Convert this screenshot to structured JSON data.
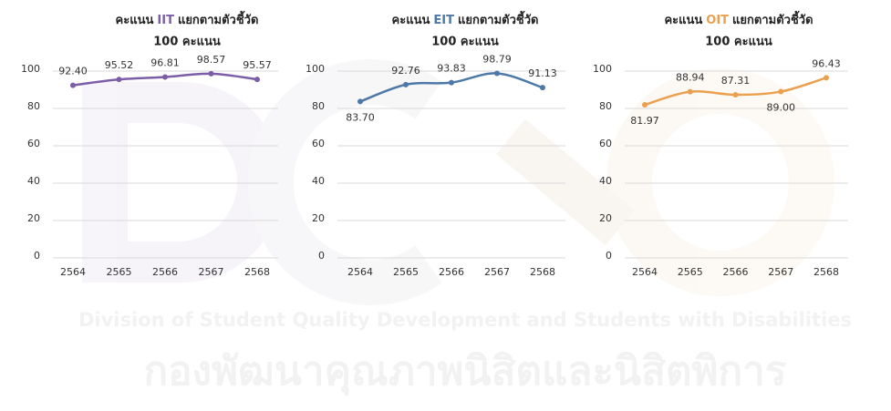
{
  "chart_data": [
    {
      "type": "line",
      "title": [
        "คะแนน",
        "IIT",
        "แยกตามตัวชี้วัด"
      ],
      "subtitle": "100 คะแนน",
      "categories": [
        "2564",
        "2565",
        "2566",
        "2567",
        "2568"
      ],
      "series": [
        {
          "name": "IIT",
          "color": "#7b5ea7",
          "values": [
            92.4,
            95.52,
            96.81,
            98.57,
            95.57
          ],
          "value_labels": [
            "92.40",
            "95.52",
            "96.81",
            "98.57",
            "95.57"
          ]
        }
      ],
      "ylim": [
        0,
        100
      ],
      "yticks": [
        0,
        20,
        40,
        60,
        80,
        100
      ],
      "grid": true
    },
    {
      "type": "line",
      "title": [
        "คะแนน",
        "EIT",
        "แยกตามตัวชี้วัด"
      ],
      "subtitle": "100 คะแนน",
      "categories": [
        "2564",
        "2565",
        "2566",
        "2567",
        "2568"
      ],
      "series": [
        {
          "name": "EIT",
          "color": "#4d79a8",
          "values": [
            83.7,
            92.76,
            93.83,
            98.79,
            91.13
          ],
          "value_labels": [
            "83.70",
            "92.76",
            "93.83",
            "98.79",
            "91.13"
          ]
        }
      ],
      "ylim": [
        0,
        100
      ],
      "yticks": [
        0,
        20,
        40,
        60,
        80,
        100
      ],
      "grid": true
    },
    {
      "type": "line",
      "title": [
        "คะแนน",
        "OIT",
        "แยกตามตัวชี้วัด"
      ],
      "subtitle": "100 คะแนน",
      "categories": [
        "2564",
        "2565",
        "2566",
        "2567",
        "2568"
      ],
      "series": [
        {
          "name": "OIT",
          "color": "#eba050",
          "values": [
            81.97,
            88.94,
            87.31,
            89.0,
            96.43
          ],
          "value_labels": [
            "81.97",
            "88.94",
            "87.31",
            "89.00",
            "96.43"
          ]
        }
      ],
      "ylim": [
        0,
        100
      ],
      "yticks": [
        0,
        20,
        40,
        60,
        80,
        100
      ],
      "grid": true
    }
  ],
  "watermark": {
    "english": "Division of Student Quality Development and Students with Disabilities",
    "thai": "กองพัฒนาคุณภาพนิสิตและนิสิตพิการ"
  }
}
